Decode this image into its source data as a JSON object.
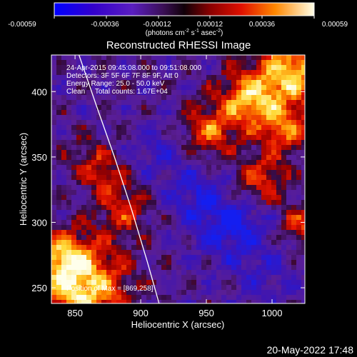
{
  "colorbar": {
    "ticks": [
      "-0.00059",
      "-0.00036",
      "-0.00012",
      "0.00012",
      "0.00036",
      "0.00059"
    ],
    "units_parts": {
      "open": "(photons cm",
      "exp1": "-2",
      "s": " s",
      "exp2": "-1",
      "asec": " asec",
      "exp3": "-2",
      "close": ")"
    }
  },
  "chart_data": {
    "type": "heatmap",
    "title": "Reconstructed RHESSI Image",
    "xlabel": "Heliocentric X (arcsec)",
    "ylabel": "Heliocentric Y (arcsec)",
    "xlim": [
      832,
      1025
    ],
    "ylim": [
      238,
      428
    ],
    "xticks": [
      850,
      900,
      950,
      1000
    ],
    "yticks": [
      250,
      300,
      350,
      400
    ],
    "xtick_labels": [
      "850",
      "900",
      "950",
      "1000"
    ],
    "ytick_labels": [
      "250",
      "300",
      "350",
      "400"
    ],
    "value_range": [
      -0.00059,
      0.00059
    ],
    "annotations": [
      "24-Apr-2015 09:45:08.000 to 09:51:08.000",
      "Detectors: 3F 5F 6F 7F 8F 9F, Att 0",
      "Energy Range: 25.0 - 50.0 keV",
      "Clean     Total counts: 1.67E+04"
    ],
    "position_label": "Position of Max = [869,258]",
    "limb": [
      [
        914,
        238
      ],
      [
        905,
        270
      ],
      [
        893,
        310
      ],
      [
        880,
        350
      ],
      [
        866,
        390
      ],
      [
        853,
        428
      ]
    ]
  },
  "footer": {
    "date": "20-May-2022 17:48"
  }
}
